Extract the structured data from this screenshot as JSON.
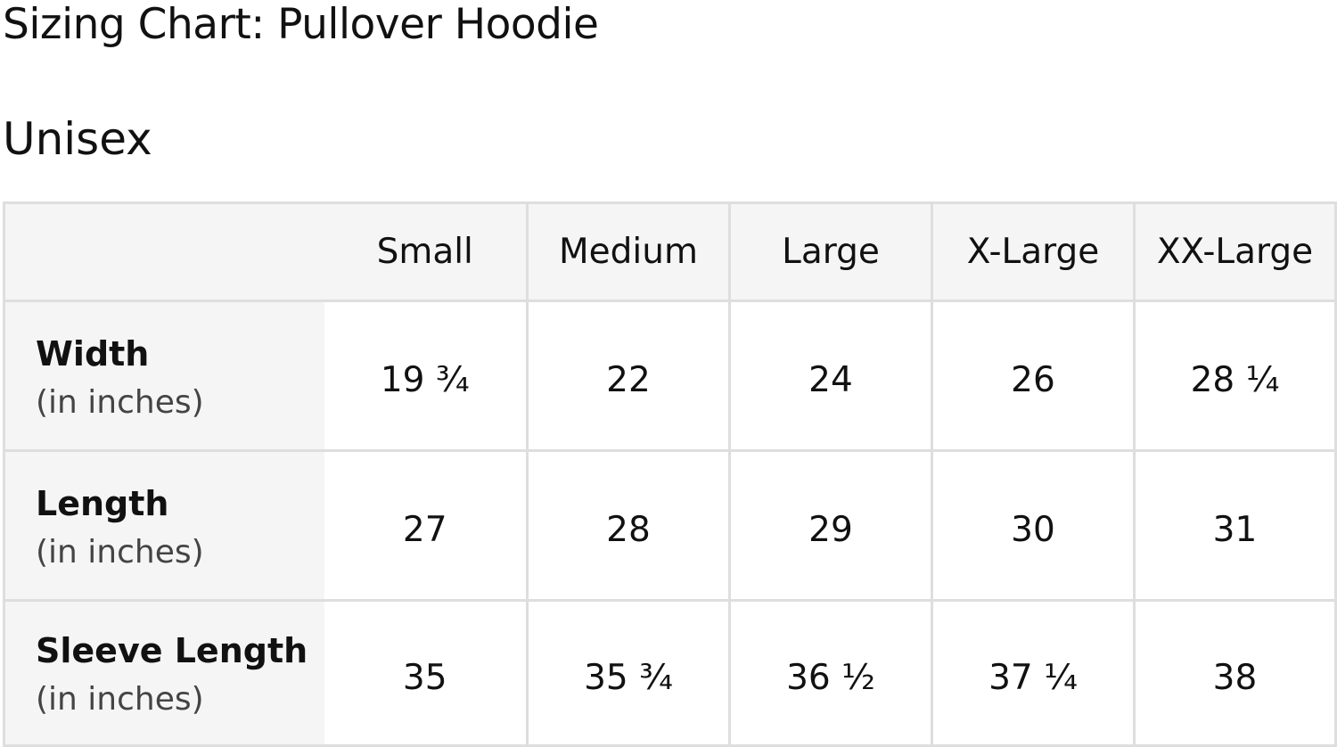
{
  "title": "Sizing Chart: Pullover Hoodie",
  "subtitle": "Unisex",
  "table": {
    "columns": [
      "Small",
      "Medium",
      "Large",
      "X-Large",
      "XX-Large"
    ],
    "rows": [
      {
        "label": "Width",
        "unit": "(in inches)",
        "values": [
          "19 ¾",
          "22",
          "24",
          "26",
          "28 ¼"
        ]
      },
      {
        "label": "Length",
        "unit": "(in inches)",
        "values": [
          "27",
          "28",
          "29",
          "30",
          "31"
        ]
      },
      {
        "label": "Sleeve Length",
        "unit": "(in inches)",
        "values": [
          "35",
          "35 ¾",
          "36 ½",
          "37 ¼",
          "38"
        ]
      }
    ]
  }
}
